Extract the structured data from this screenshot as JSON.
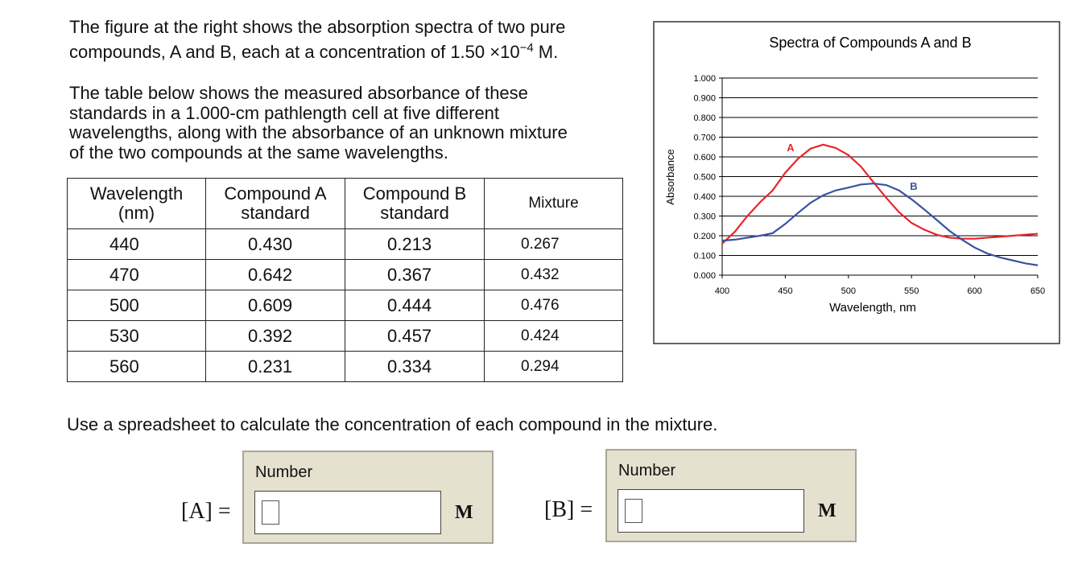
{
  "intro": {
    "line1": "The figure at the right shows the absorption spectra of two pure",
    "line2a": "compounds, A and B, each at a concentration of 1.50 ×10",
    "line2sup": "−4",
    "line2b": " M.",
    "para2": [
      "The table below shows the measured absorbance of these",
      "standards in a 1.000-cm pathlength cell at five different",
      "wavelengths, along with the absorbance of an unknown mixture",
      "of the two compounds at the same wavelengths."
    ]
  },
  "table": {
    "header": [
      [
        "Wavelength",
        "(nm)"
      ],
      [
        "Compound A",
        "standard"
      ],
      [
        "Compound B",
        "standard"
      ],
      [
        "Mixture"
      ]
    ],
    "rows": [
      [
        "440",
        "0.430",
        "0.213",
        "0.267"
      ],
      [
        "470",
        "0.642",
        "0.367",
        "0.432"
      ],
      [
        "500",
        "0.609",
        "0.444",
        "0.476"
      ],
      [
        "530",
        "0.392",
        "0.457",
        "0.424"
      ],
      [
        "560",
        "0.231",
        "0.334",
        "0.294"
      ]
    ]
  },
  "chart_data": {
    "type": "line",
    "title": "Spectra of Compounds A and B",
    "xlabel": "Wavelength, nm",
    "ylabel": "Absorbance",
    "x": [
      400,
      410,
      420,
      430,
      440,
      450,
      460,
      470,
      480,
      490,
      500,
      510,
      520,
      530,
      540,
      550,
      560,
      570,
      580,
      590,
      600,
      610,
      620,
      630,
      640,
      650
    ],
    "series": [
      {
        "name": "A",
        "color": "#e8262a",
        "values": [
          0.16,
          0.22,
          0.3,
          0.37,
          0.43,
          0.52,
          0.59,
          0.642,
          0.662,
          0.645,
          0.609,
          0.55,
          0.47,
          0.392,
          0.32,
          0.265,
          0.231,
          0.205,
          0.19,
          0.185,
          0.185,
          0.19,
          0.195,
          0.2,
          0.205,
          0.21
        ]
      },
      {
        "name": "B",
        "color": "#3a52a0",
        "values": [
          0.175,
          0.18,
          0.19,
          0.2,
          0.213,
          0.26,
          0.315,
          0.367,
          0.405,
          0.43,
          0.444,
          0.46,
          0.465,
          0.457,
          0.43,
          0.385,
          0.334,
          0.28,
          0.225,
          0.18,
          0.14,
          0.11,
          0.09,
          0.075,
          0.06,
          0.05
        ]
      }
    ],
    "xlim": [
      400,
      650
    ],
    "xticks": [
      400,
      450,
      500,
      550,
      600,
      650
    ],
    "ylim": [
      0,
      1
    ],
    "yticks": [
      {
        "value": 0,
        "label": "0.000"
      },
      {
        "value": 0.1,
        "label": "0.100"
      },
      {
        "value": 0.2,
        "label": "0.200"
      },
      {
        "value": 0.3,
        "label": "0.300"
      },
      {
        "value": 0.4,
        "label": "0.400"
      },
      {
        "value": 0.5,
        "label": "0.500"
      },
      {
        "value": 0.6,
        "label": "0.600"
      },
      {
        "value": 0.7,
        "label": "0.700"
      },
      {
        "value": 0.8,
        "label": "0.800"
      },
      {
        "value": 0.9,
        "label": "0.900"
      },
      {
        "value": 1,
        "label": "1.000"
      }
    ],
    "grid": true
  },
  "instruction": "Use a spreadsheet to calculate the concentration of each compound in the mixture.",
  "answers": [
    {
      "label": "[A] =",
      "prompt": "Number",
      "unit": "M"
    },
    {
      "label": "[B] =",
      "prompt": "Number",
      "unit": "M"
    }
  ]
}
